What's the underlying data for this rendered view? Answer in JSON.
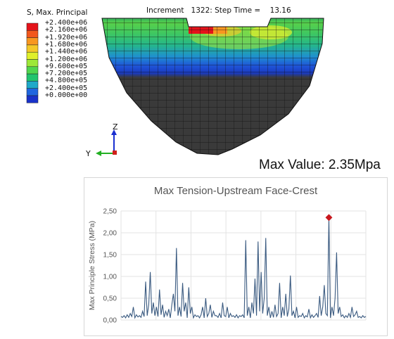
{
  "legend": {
    "title": "S, Max. Principal",
    "labels": [
      "+2.400e+06",
      "+2.160e+06",
      "+1.920e+06",
      "+1.680e+06",
      "+1.440e+06",
      "+1.200e+06",
      "+9.600e+05",
      "+7.200e+05",
      "+4.800e+05",
      "+2.400e+05",
      "+0.000e+00"
    ],
    "colors": [
      "#e4131a",
      "#f2571c",
      "#f89720",
      "#f4c828",
      "#dff02a",
      "#9ee838",
      "#50d64e",
      "#22c46e",
      "#1fa9c9",
      "#1f66df",
      "#1932c9"
    ]
  },
  "increment_text": "Increment   1322: Step Time =    13.16",
  "triad": {
    "z_label": "Z",
    "y_label": "Y"
  },
  "max_value_text": "Max Value: 2.35Mpa",
  "chart_data": {
    "type": "line",
    "title": "Max Tension-Upstream Face-Crest",
    "ylabel": "Max Principle Stress (MPa)",
    "xlabel": "",
    "ylim": [
      0,
      2.5
    ],
    "yticks": [
      "0,00",
      "0,50",
      "1,00",
      "1,50",
      "2,00",
      "2,50"
    ],
    "grid": true,
    "series": [
      {
        "color": "#3a5a80",
        "values": [
          0.08,
          0.06,
          0.1,
          0.05,
          0.12,
          0.06,
          0.15,
          0.08,
          0.3,
          0.05,
          0.12,
          0.07,
          0.1,
          0.06,
          0.2,
          0.08,
          0.88,
          0.1,
          0.35,
          1.1,
          0.15,
          0.4,
          0.1,
          0.3,
          0.08,
          0.7,
          0.12,
          0.35,
          0.06,
          0.2,
          0.1,
          0.25,
          0.05,
          0.35,
          0.6,
          0.2,
          1.65,
          0.1,
          0.3,
          0.08,
          0.85,
          0.2,
          0.4,
          0.05,
          0.75,
          0.15,
          0.3,
          0.05,
          0.12,
          0.08,
          0.1,
          0.05,
          0.12,
          0.3,
          0.05,
          0.5,
          0.08,
          0.15,
          0.35,
          0.06,
          0.2,
          0.1,
          0.1,
          0.06,
          0.15,
          0.05,
          0.4,
          0.1,
          0.08,
          0.3,
          0.05,
          0.15,
          0.08,
          0.1,
          0.06,
          0.12,
          0.05,
          0.1,
          0.08,
          0.12,
          0.05,
          1.83,
          0.1,
          0.3,
          0.05,
          0.4,
          0.15,
          0.95,
          0.1,
          1.8,
          0.2,
          1.1,
          0.15,
          0.5,
          1.88,
          0.1,
          0.3,
          0.05,
          0.2,
          0.06,
          0.35,
          0.08,
          0.15,
          0.85,
          0.05,
          0.3,
          0.1,
          0.6,
          0.08,
          0.25,
          1.02,
          0.1,
          0.2,
          0.05,
          0.3,
          0.06,
          0.1,
          0.08,
          0.15,
          0.05,
          0.1,
          0.07,
          0.25,
          0.05,
          0.12,
          0.06,
          0.1,
          0.15,
          0.06,
          0.55,
          0.1,
          0.3,
          0.8,
          0.15,
          0.1,
          2.35,
          0.05,
          0.3,
          0.1,
          0.5,
          1.55,
          0.15,
          0.3,
          0.08,
          0.12,
          0.05,
          0.1,
          0.06,
          0.15,
          0.06,
          0.3,
          0.08,
          0.12,
          0.2,
          0.06,
          0.08,
          0.05,
          0.1,
          0.06,
          0.08
        ],
        "max_marker": {
          "index": 135,
          "value": 2.35,
          "color": "#c8171d"
        }
      }
    ]
  }
}
